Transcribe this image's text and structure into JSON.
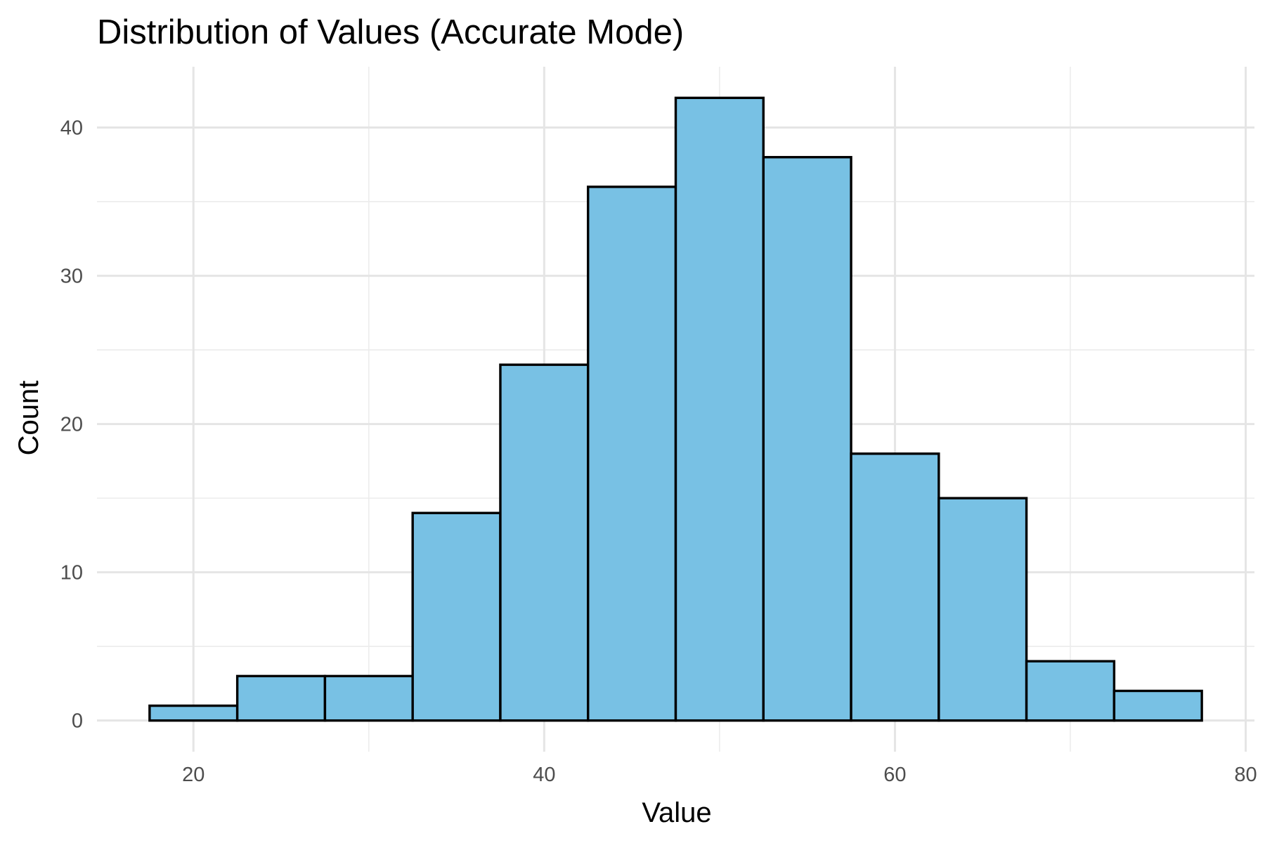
{
  "chart_data": {
    "type": "bar",
    "title": "Distribution of Values (Accurate Mode)",
    "xlabel": "Value",
    "ylabel": "Count",
    "bin_width": 5,
    "bins": [
      {
        "x_start": 17.5,
        "x_end": 22.5,
        "count": 1
      },
      {
        "x_start": 22.5,
        "x_end": 27.5,
        "count": 3
      },
      {
        "x_start": 27.5,
        "x_end": 32.5,
        "count": 3
      },
      {
        "x_start": 32.5,
        "x_end": 37.5,
        "count": 14
      },
      {
        "x_start": 37.5,
        "x_end": 42.5,
        "count": 24
      },
      {
        "x_start": 42.5,
        "x_end": 47.5,
        "count": 36
      },
      {
        "x_start": 47.5,
        "x_end": 52.5,
        "count": 42
      },
      {
        "x_start": 52.5,
        "x_end": 57.5,
        "count": 38
      },
      {
        "x_start": 57.5,
        "x_end": 62.5,
        "count": 18
      },
      {
        "x_start": 62.5,
        "x_end": 67.5,
        "count": 15
      },
      {
        "x_start": 67.5,
        "x_end": 72.5,
        "count": 4
      },
      {
        "x_start": 72.5,
        "x_end": 77.5,
        "count": 2
      }
    ],
    "xlim": [
      14.5,
      80.5
    ],
    "ylim": [
      -2.1,
      44.1
    ],
    "x_ticks": [
      20,
      40,
      60,
      80
    ],
    "y_ticks": [
      0,
      10,
      20,
      30,
      40
    ],
    "x_tick_labels": [
      "20",
      "40",
      "60",
      "80"
    ],
    "y_tick_labels": [
      "0",
      "10",
      "20",
      "30",
      "40"
    ],
    "grid": true,
    "legend": false,
    "colors": {
      "bar_fill": "#78c1e4",
      "bar_outline": "#000000",
      "grid": "#e5e5e5",
      "tick_text": "#4d4d4d"
    }
  }
}
